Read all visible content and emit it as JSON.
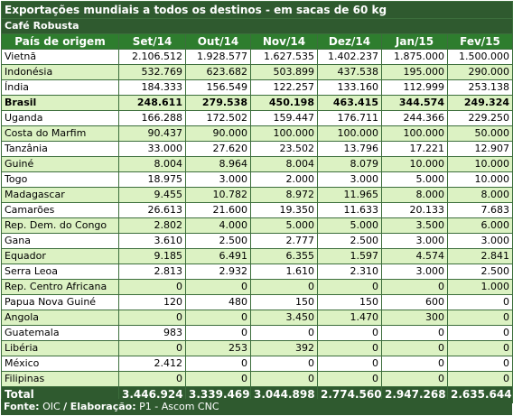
{
  "title": "Exportações mundiais a todos os destinos - em sacas de 60 kg",
  "subtitle": "Café Robusta",
  "headers": [
    "País de origem",
    "Set/14",
    "Out/14",
    "Nov/14",
    "Dez/14",
    "Jan/15",
    "Fev/15"
  ],
  "rows": [
    {
      "country": "Vietnã",
      "values": [
        "2.106.512",
        "1.928.577",
        "1.627.535",
        "1.402.237",
        "1.875.000",
        "1.500.000"
      ],
      "style": "w"
    },
    {
      "country": "Indonésia",
      "values": [
        "532.769",
        "623.682",
        "503.899",
        "437.538",
        "195.000",
        "290.000"
      ],
      "style": "g"
    },
    {
      "country": "Índia",
      "values": [
        "184.333",
        "156.549",
        "122.257",
        "133.160",
        "112.999",
        "253.138"
      ],
      "style": "w"
    },
    {
      "country": "Brasil",
      "values": [
        "248.611",
        "279.538",
        "450.198",
        "463.415",
        "344.574",
        "249.324"
      ],
      "style": "hl"
    },
    {
      "country": "Uganda",
      "values": [
        "166.288",
        "172.502",
        "159.447",
        "176.711",
        "244.366",
        "229.250"
      ],
      "style": "w"
    },
    {
      "country": "Costa do Marfim",
      "values": [
        "90.437",
        "90.000",
        "100.000",
        "100.000",
        "100.000",
        "50.000"
      ],
      "style": "g"
    },
    {
      "country": "Tanzânia",
      "values": [
        "33.000",
        "27.620",
        "23.502",
        "13.796",
        "17.221",
        "12.907"
      ],
      "style": "w"
    },
    {
      "country": "Guiné",
      "values": [
        "8.004",
        "8.964",
        "8.004",
        "8.079",
        "10.000",
        "10.000"
      ],
      "style": "g"
    },
    {
      "country": "Togo",
      "values": [
        "18.975",
        "3.000",
        "2.000",
        "3.000",
        "5.000",
        "10.000"
      ],
      "style": "w"
    },
    {
      "country": "Madagascar",
      "values": [
        "9.455",
        "10.782",
        "8.972",
        "11.965",
        "8.000",
        "8.000"
      ],
      "style": "g"
    },
    {
      "country": "Camarões",
      "values": [
        "26.613",
        "21.600",
        "19.350",
        "11.633",
        "20.133",
        "7.683"
      ],
      "style": "w"
    },
    {
      "country": "Rep. Dem. do Congo",
      "values": [
        "2.802",
        "4.000",
        "5.000",
        "5.000",
        "3.500",
        "6.000"
      ],
      "style": "g"
    },
    {
      "country": "Gana",
      "values": [
        "3.610",
        "2.500",
        "2.777",
        "2.500",
        "3.000",
        "3.000"
      ],
      "style": "w"
    },
    {
      "country": "Equador",
      "values": [
        "9.185",
        "6.491",
        "6.355",
        "1.597",
        "4.574",
        "2.841"
      ],
      "style": "g"
    },
    {
      "country": "Serra Leoa",
      "values": [
        "2.813",
        "2.932",
        "1.610",
        "2.310",
        "3.000",
        "2.500"
      ],
      "style": "w"
    },
    {
      "country": "Rep. Centro Africana",
      "values": [
        "0",
        "0",
        "0",
        "0",
        "0",
        "1.000"
      ],
      "style": "g"
    },
    {
      "country": "Papua Nova Guiné",
      "values": [
        "120",
        "480",
        "150",
        "150",
        "600",
        "0"
      ],
      "style": "w"
    },
    {
      "country": "Angola",
      "values": [
        "0",
        "0",
        "3.450",
        "1.470",
        "300",
        "0"
      ],
      "style": "g"
    },
    {
      "country": "Guatemala",
      "values": [
        "983",
        "0",
        "0",
        "0",
        "0",
        "0"
      ],
      "style": "w"
    },
    {
      "country": "Libéria",
      "values": [
        "0",
        "253",
        "392",
        "0",
        "0",
        "0"
      ],
      "style": "g"
    },
    {
      "country": "México",
      "values": [
        "2.412",
        "0",
        "0",
        "0",
        "0",
        "0"
      ],
      "style": "w"
    },
    {
      "country": "Filipinas",
      "values": [
        "0",
        "0",
        "0",
        "0",
        "0",
        "0"
      ],
      "style": "g"
    }
  ],
  "total": {
    "label": "Total",
    "values": [
      "3.446.924",
      "3.339.469",
      "3.044.898",
      "2.774.560",
      "2.947.268",
      "2.635.644"
    ]
  },
  "footer": {
    "source_label": "Fonte:",
    "source": "OIC",
    "sep": "/",
    "credit_label": "Elaboração:",
    "credit": "P1 - Ascom CNC"
  },
  "colors": {
    "dark_green": "#2f5a2f",
    "header_green": "#2e7d2e",
    "light_green": "#dcf2c3",
    "white": "#ffffff"
  }
}
